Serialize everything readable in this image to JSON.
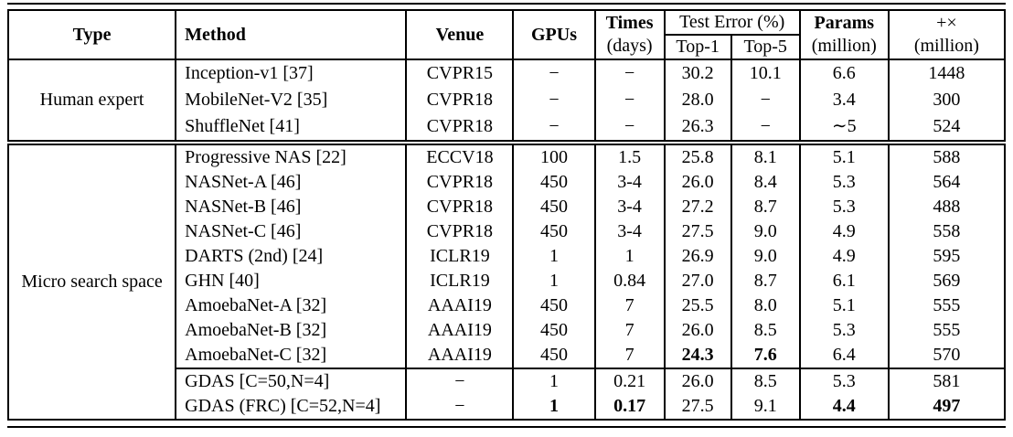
{
  "colors": {
    "text": "#000000",
    "background": "#ffffff",
    "rule": "#000000"
  },
  "table": {
    "header": {
      "type": "Type",
      "method": "Method",
      "venue": "Venue",
      "gpus": "GPUs",
      "times_line1": "Times",
      "times_line2": "(days)",
      "test_error": "Test Error (%)",
      "top1": "Top-1",
      "top5": "Top-5",
      "params_line1": "Params",
      "params_line2": "(million)",
      "flops_line1": "+×",
      "flops_line2": "(million)"
    },
    "sections": [
      {
        "type_label": "Human expert",
        "groups": [
          {
            "rows": [
              {
                "method": "Inception-v1 [37]",
                "venue": "CVPR15",
                "gpus": "−",
                "times": "−",
                "top1": "30.2",
                "top5": "10.1",
                "params": "6.6",
                "flops": "1448",
                "bold": []
              },
              {
                "method": "MobileNet-V2 [35]",
                "venue": "CVPR18",
                "gpus": "−",
                "times": "−",
                "top1": "28.0",
                "top5": "−",
                "params": "3.4",
                "flops": "300",
                "bold": []
              },
              {
                "method": "ShuffleNet [41]",
                "venue": "CVPR18",
                "gpus": "−",
                "times": "−",
                "top1": "26.3",
                "top5": "−",
                "params": "∼5",
                "flops": "524",
                "bold": []
              }
            ]
          }
        ]
      },
      {
        "type_label": "Micro search space",
        "groups": [
          {
            "rows": [
              {
                "method": "Progressive NAS [22]",
                "venue": "ECCV18",
                "gpus": "100",
                "times": "1.5",
                "top1": "25.8",
                "top5": "8.1",
                "params": "5.1",
                "flops": "588",
                "bold": []
              },
              {
                "method": "NASNet-A [46]",
                "venue": "CVPR18",
                "gpus": "450",
                "times": "3-4",
                "top1": "26.0",
                "top5": "8.4",
                "params": "5.3",
                "flops": "564",
                "bold": []
              },
              {
                "method": "NASNet-B [46]",
                "venue": "CVPR18",
                "gpus": "450",
                "times": "3-4",
                "top1": "27.2",
                "top5": "8.7",
                "params": "5.3",
                "flops": "488",
                "bold": []
              },
              {
                "method": "NASNet-C [46]",
                "venue": "CVPR18",
                "gpus": "450",
                "times": "3-4",
                "top1": "27.5",
                "top5": "9.0",
                "params": "4.9",
                "flops": "558",
                "bold": []
              },
              {
                "method": "DARTS (2nd) [24]",
                "venue": "ICLR19",
                "gpus": "1",
                "times": "1",
                "top1": "26.9",
                "top5": "9.0",
                "params": "4.9",
                "flops": "595",
                "bold": []
              },
              {
                "method": "GHN [40]",
                "venue": "ICLR19",
                "gpus": "1",
                "times": "0.84",
                "top1": "27.0",
                "top5": "8.7",
                "params": "6.1",
                "flops": "569",
                "bold": []
              },
              {
                "method": "AmoebaNet-A [32]",
                "venue": "AAAI19",
                "gpus": "450",
                "times": "7",
                "top1": "25.5",
                "top5": "8.0",
                "params": "5.1",
                "flops": "555",
                "bold": []
              },
              {
                "method": "AmoebaNet-B [32]",
                "venue": "AAAI19",
                "gpus": "450",
                "times": "7",
                "top1": "26.0",
                "top5": "8.5",
                "params": "5.3",
                "flops": "555",
                "bold": []
              },
              {
                "method": "AmoebaNet-C [32]",
                "venue": "AAAI19",
                "gpus": "450",
                "times": "7",
                "top1": "24.3",
                "top5": "7.6",
                "params": "6.4",
                "flops": "570",
                "bold": [
                  "top1",
                  "top5"
                ]
              }
            ]
          },
          {
            "rows": [
              {
                "method": "GDAS [C=50,N=4]",
                "venue": "−",
                "gpus": "1",
                "times": "0.21",
                "top1": "26.0",
                "top5": "8.5",
                "params": "5.3",
                "flops": "581",
                "bold": []
              },
              {
                "method": "GDAS (FRC) [C=52,N=4]",
                "venue": "−",
                "gpus": "1",
                "times": "0.17",
                "top1": "27.5",
                "top5": "9.1",
                "params": "4.4",
                "flops": "497",
                "bold": [
                  "gpus",
                  "times",
                  "params",
                  "flops"
                ]
              }
            ]
          }
        ]
      }
    ]
  }
}
